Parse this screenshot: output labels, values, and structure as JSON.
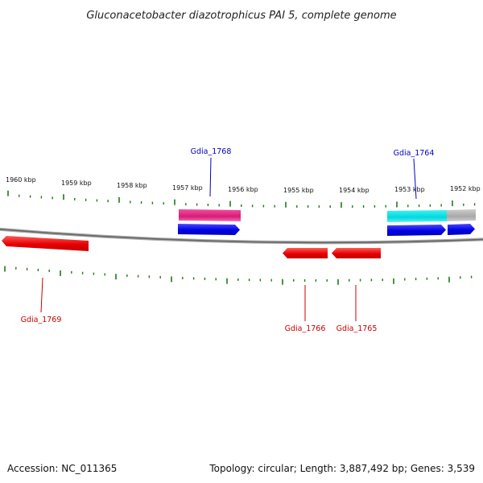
{
  "title": "Gluconacetobacter diazotrophicus PAI 5, complete genome",
  "footer": {
    "accession": "Accession: NC_011365",
    "summary": "Topology: circular; Length: 3,887,492 bp; Genes: 3,539"
  },
  "upper_ruler_labels": [
    "1960 kbp",
    "1959 kbp",
    "1958 kbp",
    "1957 kbp",
    "1956 kbp",
    "1955 kbp",
    "1954 kbp",
    "1953 kbp",
    "1952 kbp"
  ],
  "genes": [
    {
      "label": "Gdia_1768",
      "strand": "forward",
      "color": "#0000cc"
    },
    {
      "label": "Gdia_1764",
      "strand": "forward",
      "color": "#0000cc"
    },
    {
      "label": "Gdia_1769",
      "strand": "reverse",
      "color": "#cc0000"
    },
    {
      "label": "Gdia_1766",
      "strand": "reverse",
      "color": "#cc0000"
    },
    {
      "label": "Gdia_1765",
      "strand": "reverse",
      "color": "#cc0000"
    }
  ],
  "colors": {
    "forward_gene": "#1010ee",
    "reverse_gene": "#ee1010",
    "pink_feature": "#e0287a",
    "cyan_feature": "#10e0e0",
    "gray_feature": "#b0b0b0",
    "backbone": "#777777",
    "ticks": "#1a7a1a"
  }
}
